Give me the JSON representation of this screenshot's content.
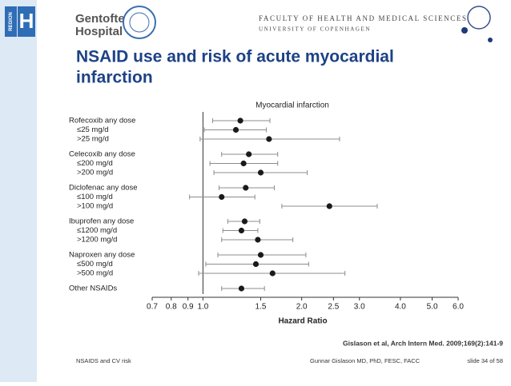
{
  "header": {
    "hospital_line1": "Gentofte",
    "hospital_line2": "Hospital",
    "region": "REGION",
    "region_letter": "H",
    "faculty_line1": "FACULTY OF HEALTH AND MEDICAL SCIENCES",
    "faculty_line2": "UNIVERSITY OF COPENHAGEN",
    "slide_title_line1": "NSAID use and risk of acute myocardial",
    "slide_title_line2": "infarction"
  },
  "chart_data": {
    "type": "forest",
    "title": "Myocardial infarction",
    "xlabel": "Hazard Ratio",
    "categories": [
      "Rofecoxib any dose",
      "≤25 mg/d",
      ">25 mg/d",
      "Celecoxib any dose",
      "≤200 mg/d",
      ">200 mg/d",
      "Diclofenac any dose",
      "≤100 mg/d",
      ">100 mg/d",
      "Ibuprofen any dose",
      "≤1200 mg/d",
      ">1200 mg/d",
      "Naproxen any dose",
      "≤500 mg/d",
      ">500 mg/d",
      "Other NSAIDs"
    ],
    "values": [
      1.3,
      1.26,
      1.59,
      1.38,
      1.33,
      1.5,
      1.35,
      1.14,
      2.43,
      1.34,
      1.31,
      1.47,
      1.5,
      1.45,
      1.63,
      1.31
    ],
    "ci_low": [
      1.07,
      1.01,
      0.98,
      1.14,
      1.05,
      1.08,
      1.12,
      0.91,
      1.74,
      1.19,
      1.15,
      1.14,
      1.11,
      1.02,
      0.97,
      1.14
    ],
    "ci_high": [
      1.6,
      1.56,
      2.61,
      1.69,
      1.69,
      2.08,
      1.65,
      1.44,
      3.4,
      1.49,
      1.47,
      1.88,
      2.06,
      2.1,
      2.71,
      1.54
    ],
    "color": "#1a1a1a",
    "ci_color": "#8c8c8c",
    "xscale": "log",
    "xlim": [
      0.7,
      6.0
    ],
    "xticks": [
      0.7,
      0.8,
      0.9,
      {
        "value": 1,
        "label": "1.0"
      },
      1.5,
      {
        "value": 2,
        "label": "2.0"
      },
      2.5,
      {
        "value": 3,
        "label": "3.0"
      },
      {
        "value": 4,
        "label": "4.0"
      },
      {
        "value": 5,
        "label": "5.0"
      },
      {
        "value": 6,
        "label": "6.0"
      }
    ],
    "reference": 1
  },
  "footer": {
    "citation": "Gislason et al, Arch Intern Med. 2009;169(2):141-9",
    "topic": "NSAIDS and CV risk",
    "author": "Gunnar Gislason MD, PhD, FESC, FACC",
    "slide": "slide 34 of 58"
  }
}
